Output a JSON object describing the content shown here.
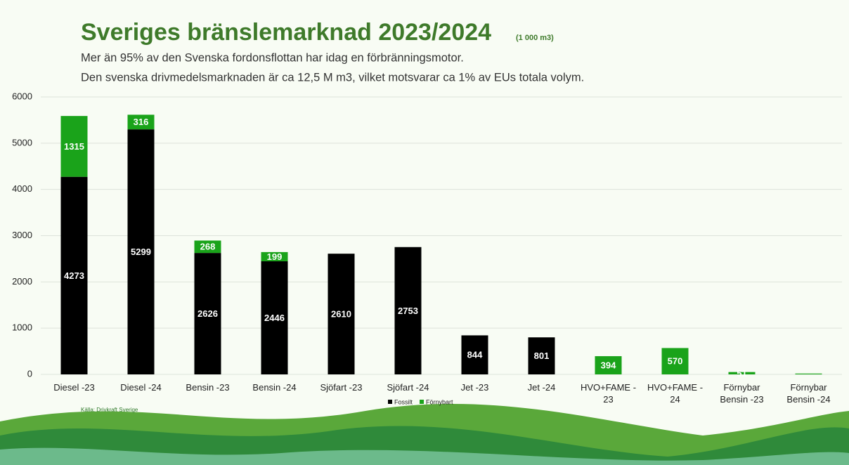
{
  "chart_data": {
    "type": "stacked_bar",
    "title": "Sveriges bränslemarknad 2023/2024",
    "subtitle": "(1 000 m3)",
    "annotations": [
      "Mer än 95% av den Svenska fordonsflottan har idag en förbränningsmotor.",
      "Den svenska drivmedelsmarknaden är ca 12,5 M m3, vilket motsvarar ca 1% av EUs totala volym."
    ],
    "source": "Källa: Drivkraft Sverige",
    "categories": [
      "Diesel -23",
      "Diesel -24",
      "Bensin -23",
      "Bensin -24",
      "Sjöfart -23",
      "Sjöfart -24",
      "Jet -23",
      "Jet -24",
      "HVO+FAME - 23",
      "HVO+FAME - 24",
      "Förnybar Bensin -23",
      "Förnybar Bensin -24"
    ],
    "series": [
      {
        "name": "Fossilt",
        "color": "#000000",
        "values": [
          4273,
          5299,
          2626,
          2446,
          2610,
          2753,
          844,
          801,
          null,
          null,
          null,
          null
        ]
      },
      {
        "name": "Förnybart",
        "color": "#1aa31a",
        "values": [
          1315,
          316,
          268,
          199,
          null,
          null,
          null,
          null,
          394,
          570,
          51,
          18
        ]
      }
    ],
    "ylim": [
      0,
      6000
    ],
    "yticks": [
      0,
      1000,
      2000,
      3000,
      4000,
      5000,
      6000
    ],
    "grid": true,
    "legend": "bottom"
  }
}
